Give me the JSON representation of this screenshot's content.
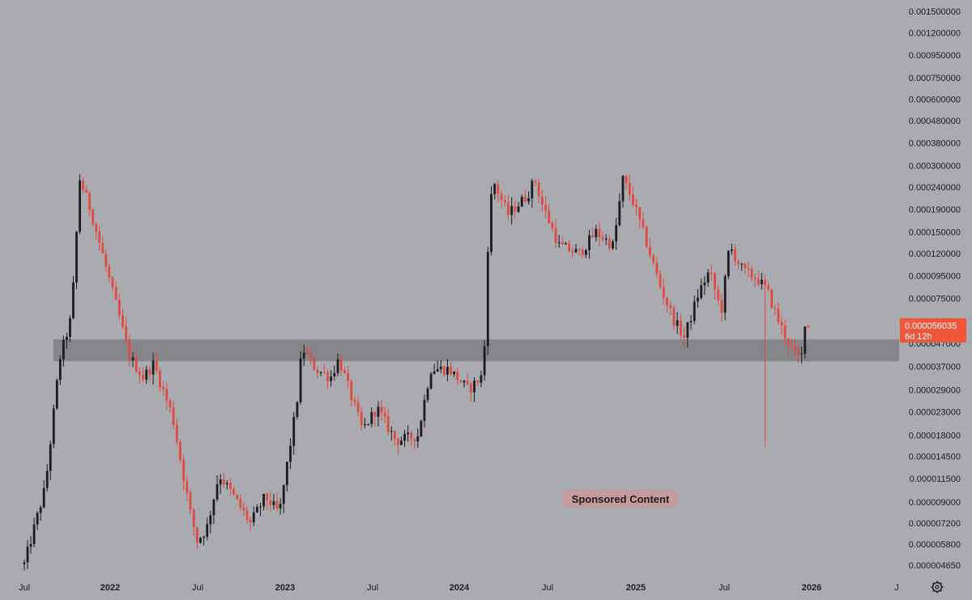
{
  "chart_data": {
    "type": "candlestick",
    "scale": "log",
    "title": "",
    "xlabel": "",
    "ylabel": "",
    "colors": {
      "up": "#1b1c20",
      "down": "#e2493f",
      "zone": "#7e7f84",
      "background": "#a9abb0",
      "price_label": "#f0563a"
    },
    "y_ticks": [
      "0.001500000",
      "0.001200000",
      "0.000950000",
      "0.000750000",
      "0.000600000",
      "0.000480000",
      "0.000380000",
      "0.000300000",
      "0.000240000",
      "0.000190000",
      "0.000150000",
      "0.000120000",
      "0.000095000",
      "0.000075000",
      "0.000047000",
      "0.000037000",
      "0.000029000",
      "0.000023000",
      "0.000018000",
      "0.000014500",
      "0.000011500",
      "0.000009000",
      "0.000007200",
      "0.000005800",
      "0.000004650"
    ],
    "x_ticks": [
      {
        "label": "Jul",
        "bold": false
      },
      {
        "label": "2022",
        "bold": true
      },
      {
        "label": "Jul",
        "bold": false
      },
      {
        "label": "2023",
        "bold": true
      },
      {
        "label": "Jul",
        "bold": false
      },
      {
        "label": "2024",
        "bold": true
      },
      {
        "label": "Jul",
        "bold": false
      },
      {
        "label": "2025",
        "bold": true
      },
      {
        "label": "Jul",
        "bold": false
      },
      {
        "label": "2026",
        "bold": true
      },
      {
        "label": "J",
        "bold": false
      }
    ],
    "support_zone": {
      "low": 3.9e-05,
      "high": 4.9e-05
    },
    "current_price": "0.000056035",
    "countdown": "6d 12h",
    "last_close": 5.6035e-05,
    "anchors": [
      [
        "2021-07-01",
        4.7e-06
      ],
      [
        "2021-08-15",
        1.05e-05
      ],
      [
        "2021-09-15",
        4e-05
      ],
      [
        "2021-10-10",
        6.2e-05
      ],
      [
        "2021-10-28",
        0.00026
      ],
      [
        "2021-11-20",
        0.00019
      ],
      [
        "2021-12-20",
        0.00011
      ],
      [
        "2022-01-20",
        6.2e-05
      ],
      [
        "2022-02-10",
        4.1e-05
      ],
      [
        "2022-03-10",
        3.3e-05
      ],
      [
        "2022-04-01",
        3.8e-05
      ],
      [
        "2022-05-10",
        2.2e-05
      ],
      [
        "2022-06-15",
        8.2e-06
      ],
      [
        "2022-06-30",
        6e-06
      ],
      [
        "2022-07-20",
        6.8e-06
      ],
      [
        "2022-08-15",
        1.2e-05
      ],
      [
        "2022-09-15",
        9.5e-06
      ],
      [
        "2022-10-20",
        7.2e-06
      ],
      [
        "2022-11-20",
        9.5e-06
      ],
      [
        "2022-12-20",
        8e-06
      ],
      [
        "2023-01-25",
        2.5e-05
      ],
      [
        "2023-02-05",
        4.5e-05
      ],
      [
        "2023-03-05",
        3.6e-05
      ],
      [
        "2023-04-05",
        3.3e-05
      ],
      [
        "2023-04-22",
        4e-05
      ],
      [
        "2023-06-10",
        1.9e-05
      ],
      [
        "2023-07-10",
        2.4e-05
      ],
      [
        "2023-08-20",
        1.7e-05
      ],
      [
        "2023-10-05",
        1.8e-05
      ],
      [
        "2023-11-01",
        3.6e-05
      ],
      [
        "2023-12-10",
        3.6e-05
      ],
      [
        "2024-01-20",
        2.9e-05
      ],
      [
        "2024-02-20",
        3.4e-05
      ],
      [
        "2024-03-01",
        0.00015
      ],
      [
        "2024-03-10",
        0.00026
      ],
      [
        "2024-04-10",
        0.00018
      ],
      [
        "2024-05-20",
        0.00022
      ],
      [
        "2024-06-05",
        0.00026
      ],
      [
        "2024-06-20",
        0.0002
      ],
      [
        "2024-07-25",
        0.00013
      ],
      [
        "2024-09-05",
        0.00012
      ],
      [
        "2024-10-10",
        0.00015
      ],
      [
        "2024-11-15",
        0.00013
      ],
      [
        "2024-12-05",
        0.00026
      ],
      [
        "2024-12-25",
        0.00021
      ],
      [
        "2025-01-25",
        0.00013
      ],
      [
        "2025-02-20",
        8.5e-05
      ],
      [
        "2025-03-20",
        6e-05
      ],
      [
        "2025-04-10",
        5e-05
      ],
      [
        "2025-05-10",
        8e-05
      ],
      [
        "2025-06-01",
        0.0001
      ],
      [
        "2025-06-25",
        6.5e-05
      ],
      [
        "2025-07-12",
        0.00013
      ],
      [
        "2025-08-10",
        0.0001
      ],
      [
        "2025-09-10",
        9.2e-05
      ],
      [
        "2025-10-01",
        8e-05
      ],
      [
        "2025-10-25",
        5.8e-05
      ],
      [
        "2025-11-25",
        4.2e-05
      ],
      [
        "2025-12-10",
        4e-05
      ],
      [
        "2025-12-20",
        5.6035e-05
      ]
    ],
    "wicks": [
      {
        "date": "2025-09-25",
        "low": 1.6e-05
      }
    ]
  },
  "sponsored_label": "Sponsored Content",
  "settings_icon": "gear-icon"
}
